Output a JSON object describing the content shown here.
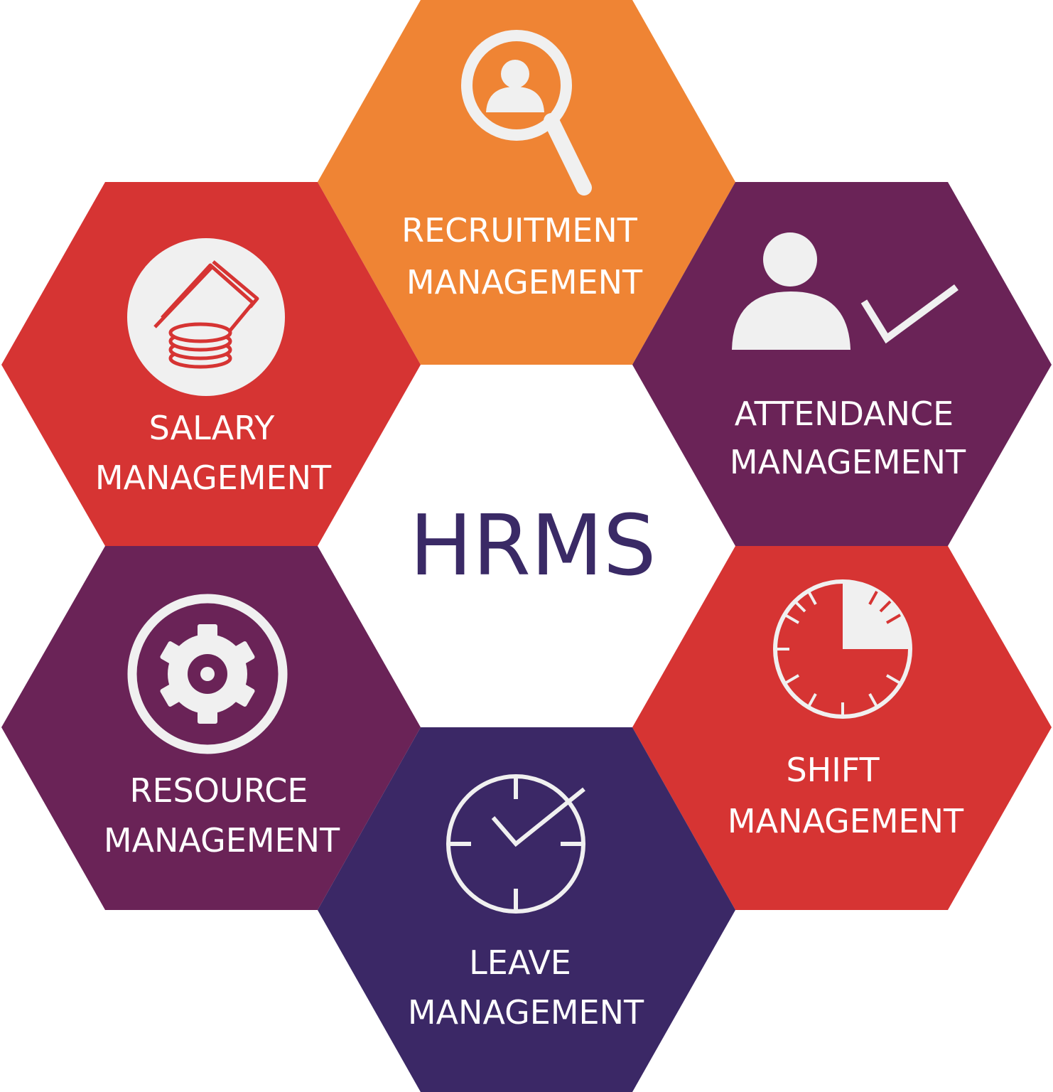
{
  "center": {
    "title": "HRMS",
    "color": "#3a2a66"
  },
  "colors": {
    "orange": "#ef8434",
    "red": "#d63433",
    "plum": "#6a2357",
    "indigo": "#3b2866",
    "icon": "#f0f0f0",
    "clock_tick_red": "#d63433"
  },
  "modules": {
    "recruitment": {
      "line1": "RECRUITMENT",
      "line2": "MANAGEMENT",
      "icon": "magnifier-person-icon"
    },
    "attendance": {
      "line1": "ATTENDANCE",
      "line2": "MANAGEMENT",
      "icon": "person-check-icon"
    },
    "shift": {
      "line1": "SHIFT",
      "line2": "MANAGEMENT",
      "icon": "stopwatch-icon"
    },
    "leave": {
      "line1": "LEAVE",
      "line2": "MANAGEMENT",
      "icon": "clock-check-icon"
    },
    "resource": {
      "line1": "RESOURCE",
      "line2": "MANAGEMENT",
      "icon": "gear-icon"
    },
    "salary": {
      "line1": "SALARY",
      "line2": "MANAGEMENT",
      "icon": "money-coins-icon"
    }
  }
}
